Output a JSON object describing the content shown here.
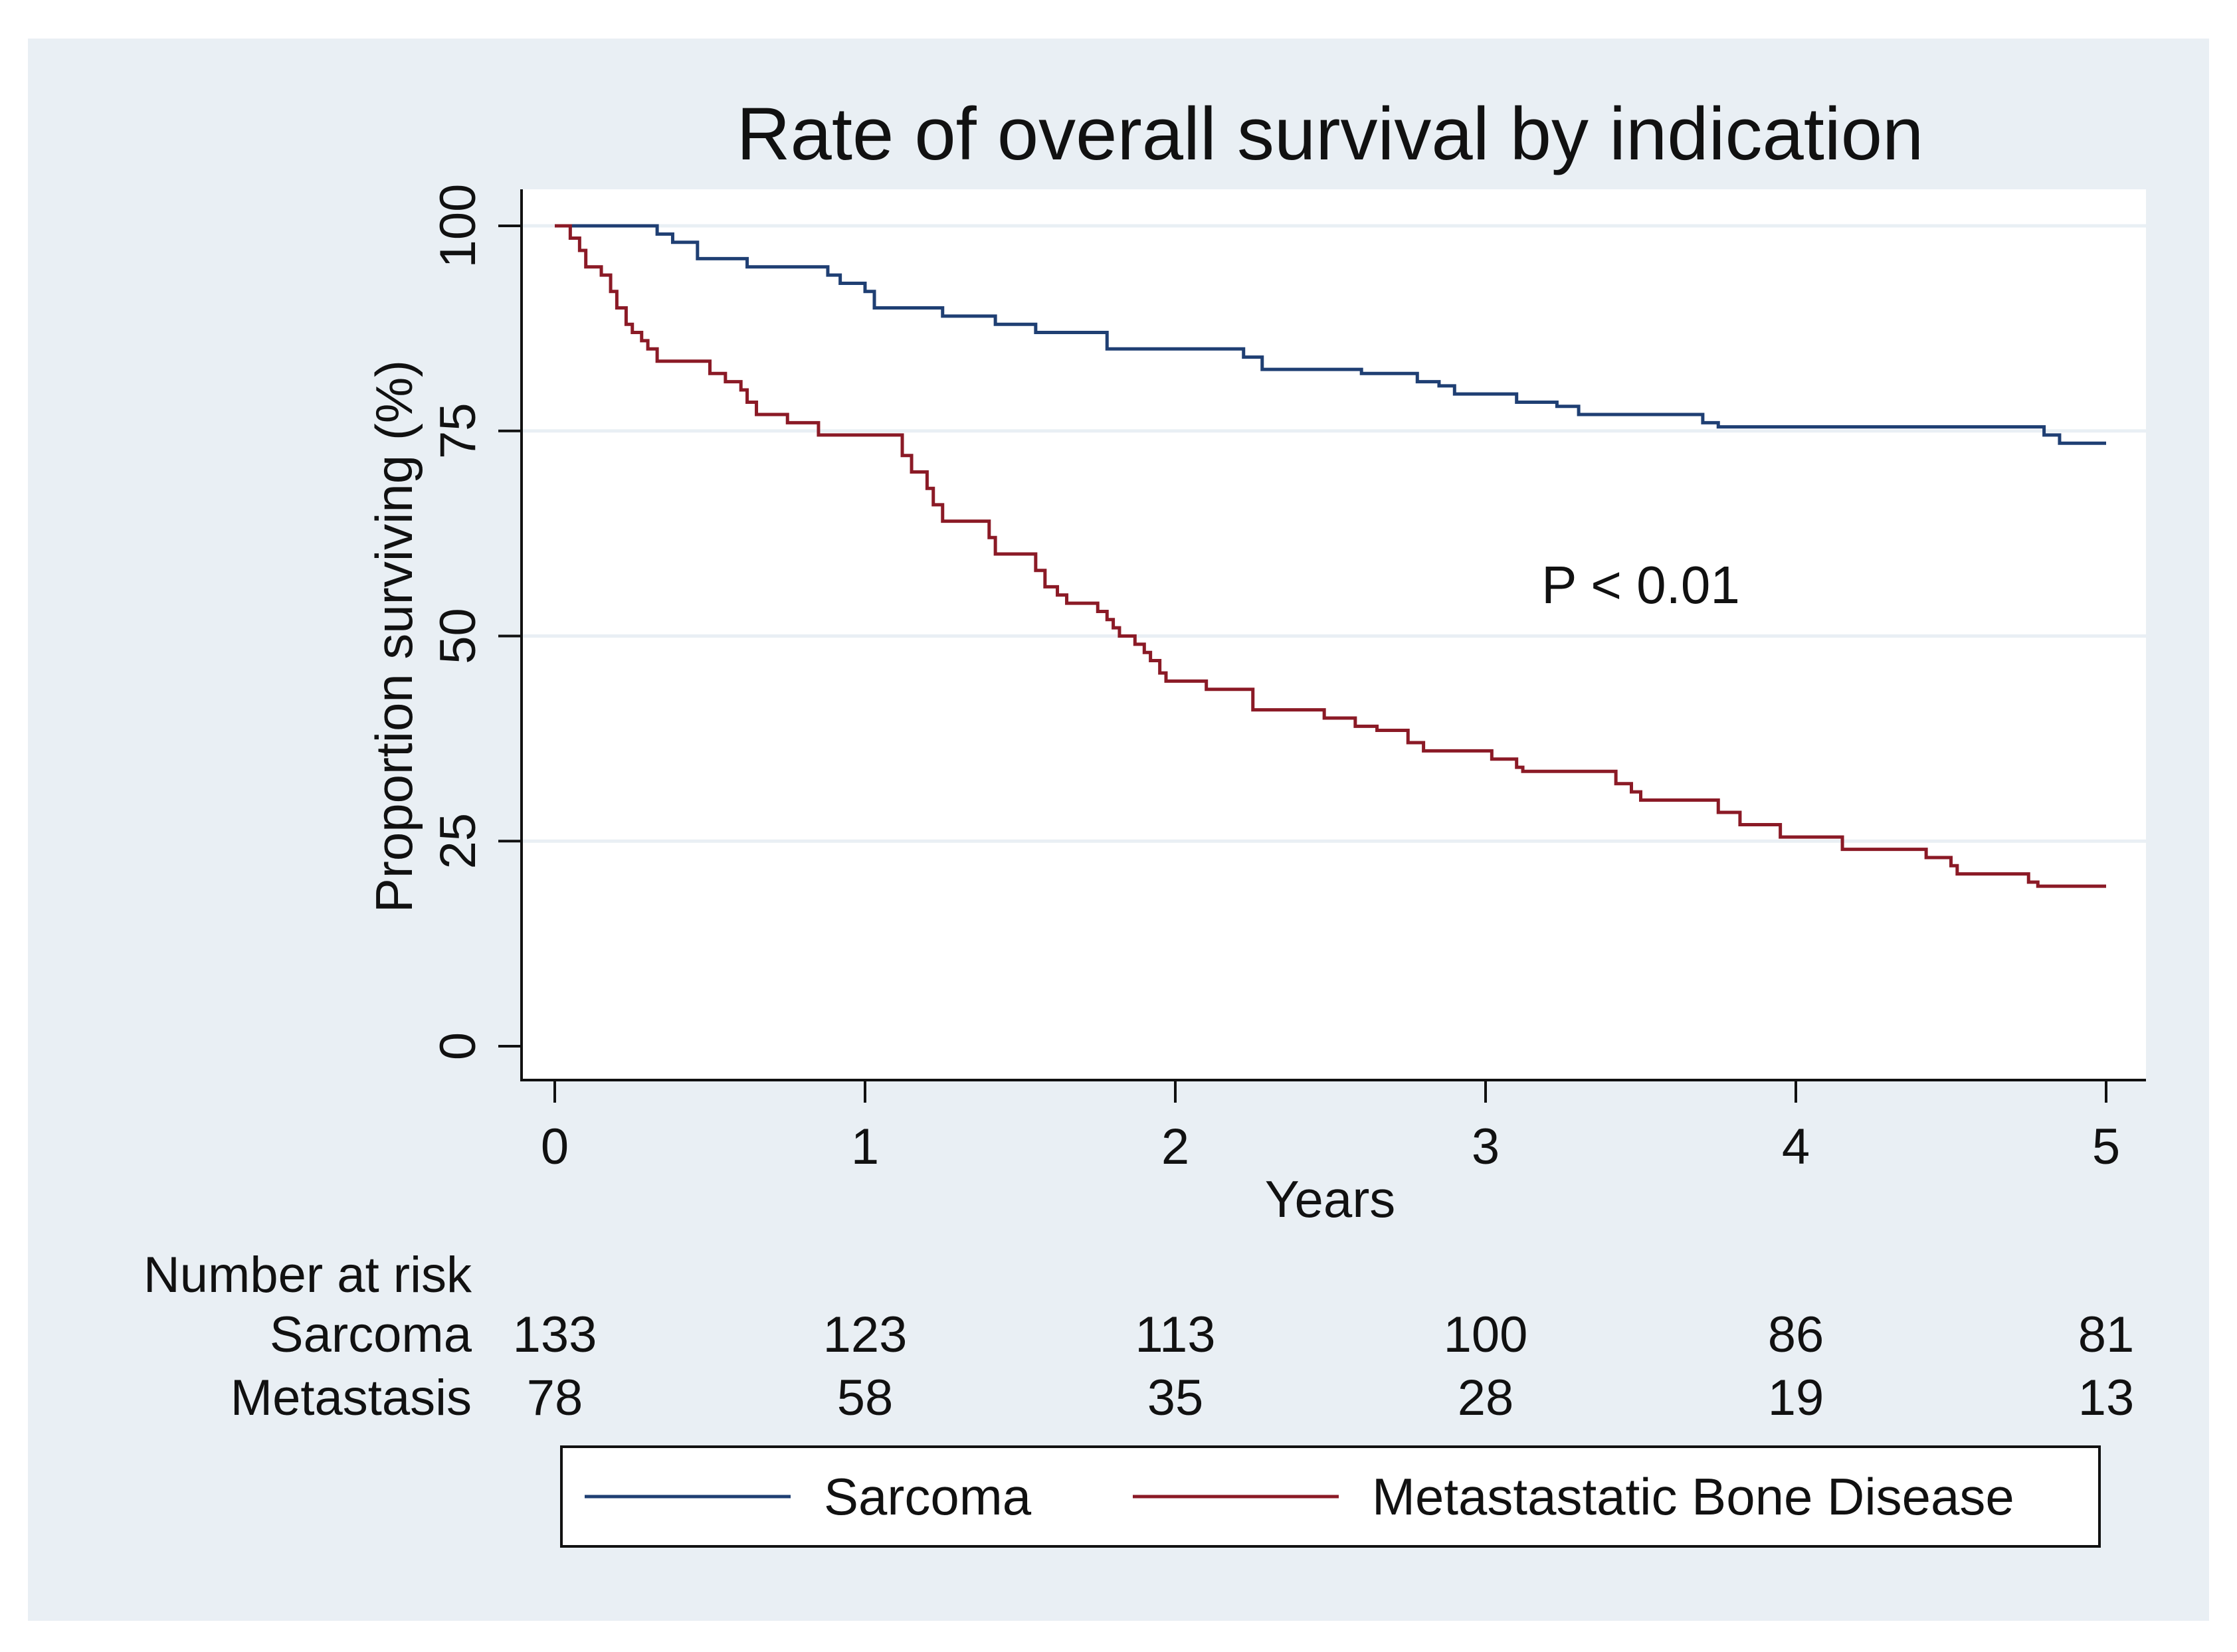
{
  "chart_data": {
    "type": "line",
    "subtype": "kaplan-meier",
    "title": "Rate of overall survival by indication",
    "xlabel": "Years",
    "ylabel": "Proportion surviving (%)",
    "xlim": [
      0,
      5
    ],
    "ylim": [
      0,
      100
    ],
    "xticks": [
      0,
      1,
      2,
      3,
      4,
      5
    ],
    "xtick_labels": [
      "0",
      "1",
      "2",
      "3",
      "4",
      "5"
    ],
    "yticks": [
      0,
      25,
      50,
      75,
      100
    ],
    "ytick_labels": [
      "0",
      "25",
      "50",
      "75",
      "100"
    ],
    "grid": true,
    "annotation": "P < 0.01",
    "annotation_at": [
      3.5,
      54
    ],
    "series": [
      {
        "name": "Sarcoma",
        "color": "#1f3f73",
        "points": [
          [
            0,
            100
          ],
          [
            0.28,
            100
          ],
          [
            0.33,
            99
          ],
          [
            0.38,
            98
          ],
          [
            0.46,
            97.5
          ],
          [
            0.46,
            96
          ],
          [
            0.62,
            95
          ],
          [
            0.88,
            94
          ],
          [
            0.92,
            93
          ],
          [
            1.0,
            92
          ],
          [
            1.03,
            91
          ],
          [
            1.03,
            90
          ],
          [
            1.25,
            90
          ],
          [
            1.25,
            89
          ],
          [
            1.42,
            89
          ],
          [
            1.42,
            88
          ],
          [
            1.55,
            88
          ],
          [
            1.55,
            87
          ],
          [
            1.72,
            87
          ],
          [
            1.78,
            86
          ],
          [
            1.78,
            85
          ],
          [
            2.2,
            85
          ],
          [
            2.22,
            84
          ],
          [
            2.28,
            83
          ],
          [
            2.28,
            82.5
          ],
          [
            2.6,
            82.5
          ],
          [
            2.6,
            82
          ],
          [
            2.75,
            82
          ],
          [
            2.78,
            81
          ],
          [
            2.85,
            80.5
          ],
          [
            2.9,
            79.5
          ],
          [
            3.1,
            79.5
          ],
          [
            3.1,
            78.5
          ],
          [
            3.2,
            78.5
          ],
          [
            3.23,
            78
          ],
          [
            3.3,
            77
          ],
          [
            3.65,
            77
          ],
          [
            3.7,
            76
          ],
          [
            3.75,
            75.5
          ],
          [
            4.75,
            75.5
          ],
          [
            4.8,
            74.5
          ],
          [
            4.85,
            73.5
          ],
          [
            5.0,
            73.5
          ]
        ]
      },
      {
        "name": "Metastastatic Bone Disease",
        "color": "#8b1a26",
        "points": [
          [
            0,
            100
          ],
          [
            0.05,
            98.5
          ],
          [
            0.08,
            97
          ],
          [
            0.1,
            95
          ],
          [
            0.15,
            94
          ],
          [
            0.18,
            92
          ],
          [
            0.2,
            90
          ],
          [
            0.23,
            88
          ],
          [
            0.25,
            87
          ],
          [
            0.28,
            86
          ],
          [
            0.3,
            85
          ],
          [
            0.33,
            84
          ],
          [
            0.33,
            83.5
          ],
          [
            0.5,
            83.5
          ],
          [
            0.5,
            82
          ],
          [
            0.55,
            81
          ],
          [
            0.6,
            80
          ],
          [
            0.62,
            78.5
          ],
          [
            0.65,
            77
          ],
          [
            0.75,
            76
          ],
          [
            0.85,
            75
          ],
          [
            0.85,
            74.5
          ],
          [
            1.1,
            74.5
          ],
          [
            1.12,
            72
          ],
          [
            1.15,
            70
          ],
          [
            1.2,
            68
          ],
          [
            1.22,
            66
          ],
          [
            1.25,
            64
          ],
          [
            1.4,
            62
          ],
          [
            1.42,
            60
          ],
          [
            1.52,
            60
          ],
          [
            1.55,
            58
          ],
          [
            1.58,
            56
          ],
          [
            1.62,
            55
          ],
          [
            1.65,
            54
          ],
          [
            1.75,
            53
          ],
          [
            1.78,
            52
          ],
          [
            1.8,
            51
          ],
          [
            1.82,
            50
          ],
          [
            1.87,
            49
          ],
          [
            1.9,
            48
          ],
          [
            1.92,
            47
          ],
          [
            1.95,
            45.5
          ],
          [
            1.97,
            44.5
          ],
          [
            2.07,
            44.5
          ],
          [
            2.1,
            43.5
          ],
          [
            2.22,
            43.5
          ],
          [
            2.25,
            41
          ],
          [
            2.45,
            41
          ],
          [
            2.48,
            40
          ],
          [
            2.55,
            40
          ],
          [
            2.58,
            39
          ],
          [
            2.65,
            38.5
          ],
          [
            2.72,
            38.5
          ],
          [
            2.75,
            37
          ],
          [
            2.8,
            36
          ],
          [
            3.0,
            36
          ],
          [
            3.02,
            35
          ],
          [
            3.1,
            34
          ],
          [
            3.12,
            33.5
          ],
          [
            3.4,
            33.5
          ],
          [
            3.42,
            32
          ],
          [
            3.47,
            31
          ],
          [
            3.5,
            30
          ],
          [
            3.72,
            30
          ],
          [
            3.75,
            28.5
          ],
          [
            3.82,
            27
          ],
          [
            3.92,
            27
          ],
          [
            3.95,
            25.5
          ],
          [
            4.1,
            25.5
          ],
          [
            4.15,
            24
          ],
          [
            4.38,
            24
          ],
          [
            4.42,
            23
          ],
          [
            4.5,
            22
          ],
          [
            4.52,
            21
          ],
          [
            4.72,
            21
          ],
          [
            4.75,
            20
          ],
          [
            4.78,
            19.5
          ],
          [
            5.0,
            19.5
          ]
        ]
      }
    ],
    "risk_table": {
      "heading": "Number at risk",
      "times": [
        0,
        1,
        2,
        3,
        4,
        5
      ],
      "rows": [
        {
          "label": "Sarcoma",
          "values": [
            "133",
            "123",
            "113",
            "100",
            "86",
            "81"
          ]
        },
        {
          "label": "Metastasis",
          "values": [
            "78",
            "58",
            "35",
            "28",
            "19",
            "13"
          ]
        }
      ]
    },
    "legend": {
      "placement": "bottom",
      "entries": [
        "Sarcoma",
        "Metastastatic Bone Disease"
      ]
    }
  },
  "colors": {
    "outer_background": "#e9eff4",
    "plot_background": "#ffffff",
    "gridline": "#e9eff4",
    "axis": "#111111"
  }
}
